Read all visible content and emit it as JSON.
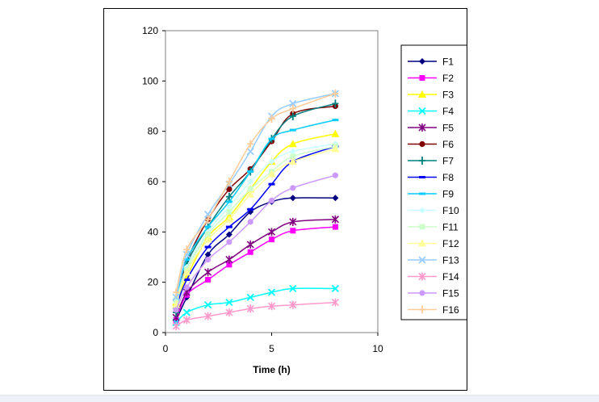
{
  "chart_data": {
    "type": "line",
    "xlabel": "Time (h)",
    "ylabel": "",
    "xlim": [
      0,
      10
    ],
    "ylim": [
      0,
      120
    ],
    "x_ticks": [
      0,
      5,
      10
    ],
    "y_ticks": [
      0,
      20,
      40,
      60,
      80,
      100,
      120
    ],
    "grid": false,
    "legend_position": "right",
    "series": [
      {
        "name": "F1",
        "color": "#000080",
        "marker": "diamond",
        "x": [
          0.5,
          1,
          2,
          3,
          4,
          5,
          6,
          8
        ],
        "values": [
          5,
          14,
          31,
          39,
          48,
          52,
          53.5,
          53.5
        ]
      },
      {
        "name": "F2",
        "color": "#FF00FF",
        "marker": "square",
        "x": [
          0.5,
          1,
          2,
          3,
          4,
          5,
          6,
          8
        ],
        "values": [
          5,
          15,
          21,
          27,
          32,
          37,
          40.5,
          42
        ]
      },
      {
        "name": "F3",
        "color": "#FFFF00",
        "marker": "triangle",
        "x": [
          0.5,
          1,
          2,
          3,
          4,
          5,
          6,
          8
        ],
        "values": [
          12,
          22,
          38,
          46,
          57,
          68,
          75,
          79
        ]
      },
      {
        "name": "F4",
        "color": "#00FFFF",
        "marker": "x",
        "x": [
          0.5,
          1,
          2,
          3,
          4,
          5,
          6,
          8
        ],
        "values": [
          4,
          8,
          11,
          12,
          14,
          16,
          17.5,
          17.5
        ]
      },
      {
        "name": "F5",
        "color": "#800080",
        "marker": "asterisk",
        "x": [
          0.5,
          1,
          2,
          3,
          4,
          5,
          6,
          8
        ],
        "values": [
          6,
          16,
          24,
          29,
          35,
          40,
          44,
          45
        ]
      },
      {
        "name": "F6",
        "color": "#800000",
        "marker": "circle",
        "x": [
          0.5,
          1,
          2,
          3,
          4,
          5,
          6,
          8
        ],
        "values": [
          9,
          28,
          45,
          57,
          65,
          76,
          87,
          90
        ]
      },
      {
        "name": "F7",
        "color": "#008080",
        "marker": "plus",
        "x": [
          0.5,
          1,
          2,
          3,
          4,
          5,
          6,
          8
        ],
        "values": [
          8,
          27,
          42,
          54,
          64,
          77,
          86,
          91
        ]
      },
      {
        "name": "F8",
        "color": "#0000FF",
        "marker": "dash",
        "x": [
          0.5,
          1,
          2,
          3,
          4,
          5,
          6,
          8
        ],
        "values": [
          10,
          21,
          34,
          42,
          49,
          59,
          68,
          74
        ]
      },
      {
        "name": "F9",
        "color": "#00CCFF",
        "marker": "dash",
        "x": [
          0.5,
          1,
          2,
          3,
          4,
          5,
          6,
          8
        ],
        "values": [
          13,
          29,
          42,
          52,
          64,
          77,
          80.5,
          84.5
        ]
      },
      {
        "name": "F10",
        "color": "#CCFFFF",
        "marker": "diamond",
        "x": [
          0.5,
          1,
          2,
          3,
          4,
          5,
          6,
          8
        ],
        "values": [
          12,
          26,
          40,
          50,
          60,
          68,
          72,
          75
        ]
      },
      {
        "name": "F11",
        "color": "#CCFFCC",
        "marker": "square",
        "x": [
          0.5,
          1,
          2,
          3,
          4,
          5,
          6,
          8
        ],
        "values": [
          13,
          25,
          39,
          48,
          57,
          64,
          70,
          74
        ]
      },
      {
        "name": "F12",
        "color": "#FFFF99",
        "marker": "triangle",
        "x": [
          0.5,
          1,
          2,
          3,
          4,
          5,
          6,
          8
        ],
        "values": [
          11,
          24,
          37,
          45,
          55,
          63,
          68,
          73
        ]
      },
      {
        "name": "F13",
        "color": "#99CCFF",
        "marker": "x",
        "x": [
          0.5,
          1,
          2,
          3,
          4,
          5,
          6,
          8
        ],
        "values": [
          14,
          31,
          47,
          59,
          72,
          86,
          91,
          95
        ]
      },
      {
        "name": "F14",
        "color": "#FF99CC",
        "marker": "asterisk",
        "x": [
          0.5,
          1,
          2,
          3,
          4,
          5,
          6,
          8
        ],
        "values": [
          2.5,
          5,
          6.5,
          8,
          9.5,
          10.5,
          11,
          12
        ]
      },
      {
        "name": "F15",
        "color": "#CC99FF",
        "marker": "circle",
        "x": [
          0.5,
          1,
          2,
          3,
          4,
          5,
          6,
          8
        ],
        "values": [
          9,
          18,
          29,
          36,
          44,
          52.5,
          57.5,
          62.5
        ]
      },
      {
        "name": "F16",
        "color": "#FFCC99",
        "marker": "plus",
        "x": [
          0.5,
          1,
          2,
          3,
          4,
          5,
          6,
          8
        ],
        "values": [
          16,
          33,
          45,
          60,
          75,
          85,
          89,
          95
        ]
      }
    ]
  }
}
